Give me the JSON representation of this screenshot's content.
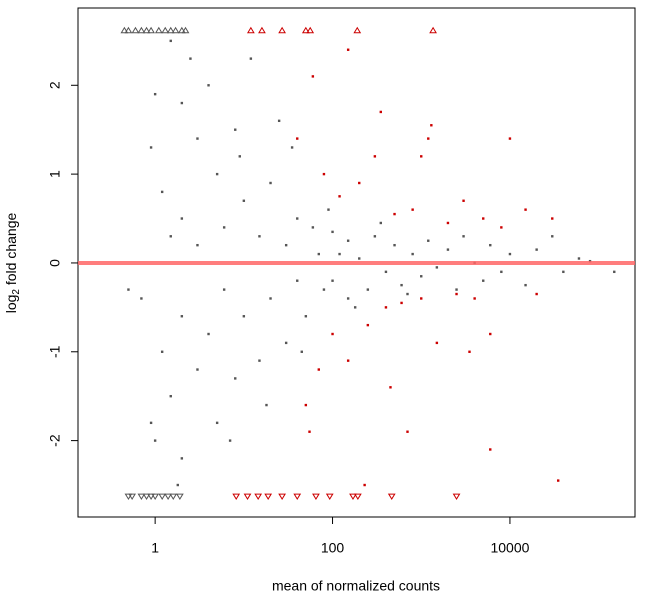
{
  "chart_data": {
    "type": "scatter",
    "x_label": "mean of normalized counts",
    "y_label": {
      "text": "log",
      "subscript": "2",
      "rest": " fold change"
    },
    "x_log": true,
    "xlim": [
      0.135,
      257000
    ],
    "xticks": [
      1,
      100,
      10000
    ],
    "ylim": [
      -2.86,
      2.87
    ],
    "yticks": [
      -2,
      -1,
      0,
      1,
      2
    ],
    "hline": {
      "value": 0,
      "color": "#ff6666"
    },
    "series": [
      {
        "color": "#555555",
        "marker": "square",
        "x": [
          0.5,
          0.9,
          0.9,
          1.0,
          1.0,
          1.2,
          1.2,
          1.5,
          1.5,
          1.5,
          2,
          2,
          2,
          2,
          3,
          3,
          3,
          4,
          4,
          5,
          5,
          6,
          6,
          8,
          8,
          10,
          10,
          12,
          15,
          15,
          20,
          20,
          25,
          30,
          30,
          40,
          40,
          50,
          60,
          70,
          80,
          100,
          100,
          120,
          150,
          150,
          200,
          250,
          300,
          400,
          500,
          600,
          800,
          1000,
          1200,
          1500,
          2000,
          2500,
          3000,
          4000,
          5000,
          6000,
          8000,
          10000,
          15000,
          20000,
          30000,
          40000,
          60000,
          80000,
          150000,
          0.7,
          1.8,
          2.5,
          7,
          9,
          18,
          35,
          45,
          90,
          180,
          350,
          700
        ],
        "values": [
          -0.3,
          1.3,
          -1.8,
          1.9,
          -2.0,
          0.8,
          -1.0,
          2.5,
          -1.5,
          0.3,
          1.8,
          -2.2,
          0.5,
          -0.6,
          1.4,
          -1.2,
          0.2,
          2.0,
          -0.8,
          1.0,
          -1.8,
          0.4,
          -0.3,
          1.5,
          -1.3,
          0.7,
          -0.6,
          2.3,
          -1.1,
          0.3,
          0.9,
          -0.4,
          1.6,
          -0.9,
          0.2,
          0.5,
          -0.2,
          -0.6,
          0.4,
          0.1,
          -0.3,
          0.35,
          -0.2,
          0.1,
          -0.4,
          0.25,
          0.05,
          -0.3,
          0.3,
          -0.1,
          0.2,
          -0.25,
          0.1,
          -0.15,
          0.25,
          -0.05,
          0.15,
          -0.3,
          0.3,
          0,
          -0.2,
          0.2,
          -0.1,
          0.1,
          -0.25,
          0.15,
          0.3,
          -0.1,
          0.05,
          0.02,
          -0.1,
          -0.4,
          -2.5,
          2.3,
          -2.0,
          1.2,
          -1.6,
          1.3,
          -1.0,
          0.6,
          -0.5,
          0.45,
          -0.35
        ]
      },
      {
        "color": "#cc0000",
        "marker": "square",
        "x": [
          40,
          50,
          60,
          70,
          80,
          100,
          120,
          150,
          200,
          250,
          300,
          400,
          500,
          600,
          800,
          1000,
          1200,
          1500,
          2000,
          2500,
          3000,
          4000,
          5000,
          6000,
          8000,
          10000,
          15000,
          20000,
          30000,
          1300,
          700,
          150,
          350,
          450,
          3500,
          6000,
          35000,
          230,
          1000,
          55
        ],
        "values": [
          1.4,
          -1.6,
          2.1,
          -1.2,
          1.0,
          -0.8,
          0.75,
          -1.1,
          0.9,
          -0.7,
          1.2,
          -0.5,
          0.55,
          -0.45,
          0.6,
          -0.4,
          1.4,
          -0.9,
          0.45,
          -0.35,
          0.7,
          -0.4,
          0.5,
          -0.8,
          0.4,
          1.4,
          0.6,
          -0.35,
          0.5,
          1.55,
          -1.9,
          2.4,
          1.7,
          -1.4,
          -1.0,
          -2.1,
          -2.45,
          -2.5,
          1.2,
          -1.9
        ]
      },
      {
        "color": "#555555",
        "marker": "triangle-up",
        "x": [
          0.45,
          0.5,
          0.6,
          0.7,
          0.8,
          0.9,
          1.1,
          1.3,
          1.5,
          1.7,
          2,
          2.2
        ],
        "values": [
          2.62,
          2.62,
          2.62,
          2.62,
          2.62,
          2.62,
          2.62,
          2.62,
          2.62,
          2.62,
          2.62,
          2.62
        ]
      },
      {
        "color": "#555555",
        "marker": "triangle-down",
        "x": [
          0.5,
          0.55,
          0.7,
          0.8,
          0.9,
          1.0,
          1.2,
          1.4,
          1.6,
          1.9
        ],
        "values": [
          -2.63,
          -2.63,
          -2.63,
          -2.63,
          -2.63,
          -2.63,
          -2.63,
          -2.63,
          -2.63,
          -2.63
        ]
      },
      {
        "color": "#cc0000",
        "marker": "triangle-up",
        "x": [
          12,
          16,
          27,
          50,
          56,
          190,
          1360
        ],
        "values": [
          2.62,
          2.62,
          2.62,
          2.62,
          2.62,
          2.62,
          2.62
        ]
      },
      {
        "color": "#cc0000",
        "marker": "triangle-down",
        "x": [
          8.2,
          11,
          14.5,
          18.8,
          27,
          40,
          65,
          93,
          170,
          193,
          465,
          2500
        ],
        "values": [
          -2.63,
          -2.63,
          -2.63,
          -2.63,
          -2.63,
          -2.63,
          -2.63,
          -2.63,
          -2.63,
          -2.63,
          -2.63,
          -2.63
        ]
      }
    ]
  }
}
